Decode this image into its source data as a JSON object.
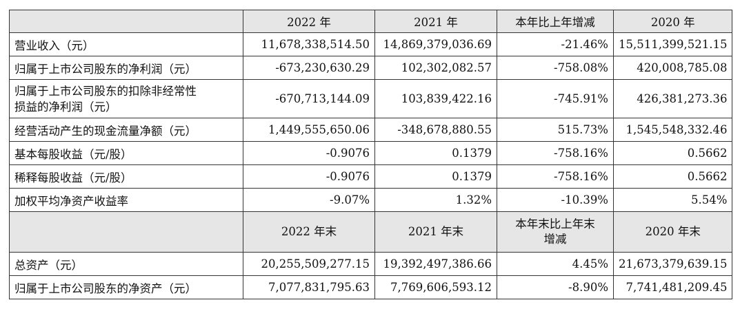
{
  "header1": [
    "",
    "2022 年",
    "2021 年",
    "本年比上年增减",
    "2020 年"
  ],
  "rows1": [
    {
      "label": "营业收入（元）",
      "v2022": "11,678,338,514.50",
      "v2021": "14,869,379,036.69",
      "change": "-21.46%",
      "v2020": "15,511,399,521.15"
    },
    {
      "label": "归属于上市公司股东的净利润（元）",
      "v2022": "-673,230,630.29",
      "v2021": "102,302,082.57",
      "change": "-758.08%",
      "v2020": "420,008,785.08"
    },
    {
      "label_line1": "归属于上市公司股东的扣除非经常性",
      "label_line2": "损益的净利润（元）",
      "v2022": "-670,713,144.09",
      "v2021": "103,839,422.16",
      "change": "-745.91%",
      "v2020": "426,381,273.36"
    },
    {
      "label": "经营活动产生的现金流量净额（元）",
      "v2022": "1,449,555,650.06",
      "v2021": "-348,678,880.55",
      "change": "515.73%",
      "v2020": "1,545,548,332.46"
    },
    {
      "label": "基本每股收益（元/股）",
      "v2022": "-0.9076",
      "v2021": "0.1379",
      "change": "-758.16%",
      "v2020": "0.5662"
    },
    {
      "label": "稀释每股收益（元/股）",
      "v2022": "-0.9076",
      "v2021": "0.1379",
      "change": "-758.16%",
      "v2020": "0.5662"
    },
    {
      "label": "加权平均净资产收益率",
      "v2022": "-9.07%",
      "v2021": "1.32%",
      "change": "-10.39%",
      "v2020": "5.54%"
    }
  ],
  "header2": {
    "c1": "2022 年末",
    "c2": "2021 年末",
    "c3_line1": "本年末比上年末",
    "c3_line2": "增减",
    "c4": "2020 年末"
  },
  "rows2": [
    {
      "label": "总资产（元）",
      "v2022": "20,255,509,277.15",
      "v2021": "19,392,497,386.66",
      "change": "4.45%",
      "v2020": "21,673,379,639.15"
    },
    {
      "label": "归属于上市公司股东的净资产（元）",
      "v2022": "7,077,831,795.63",
      "v2021": "7,769,606,593.12",
      "change": "-8.90%",
      "v2020": "7,741,481,209.45"
    }
  ]
}
